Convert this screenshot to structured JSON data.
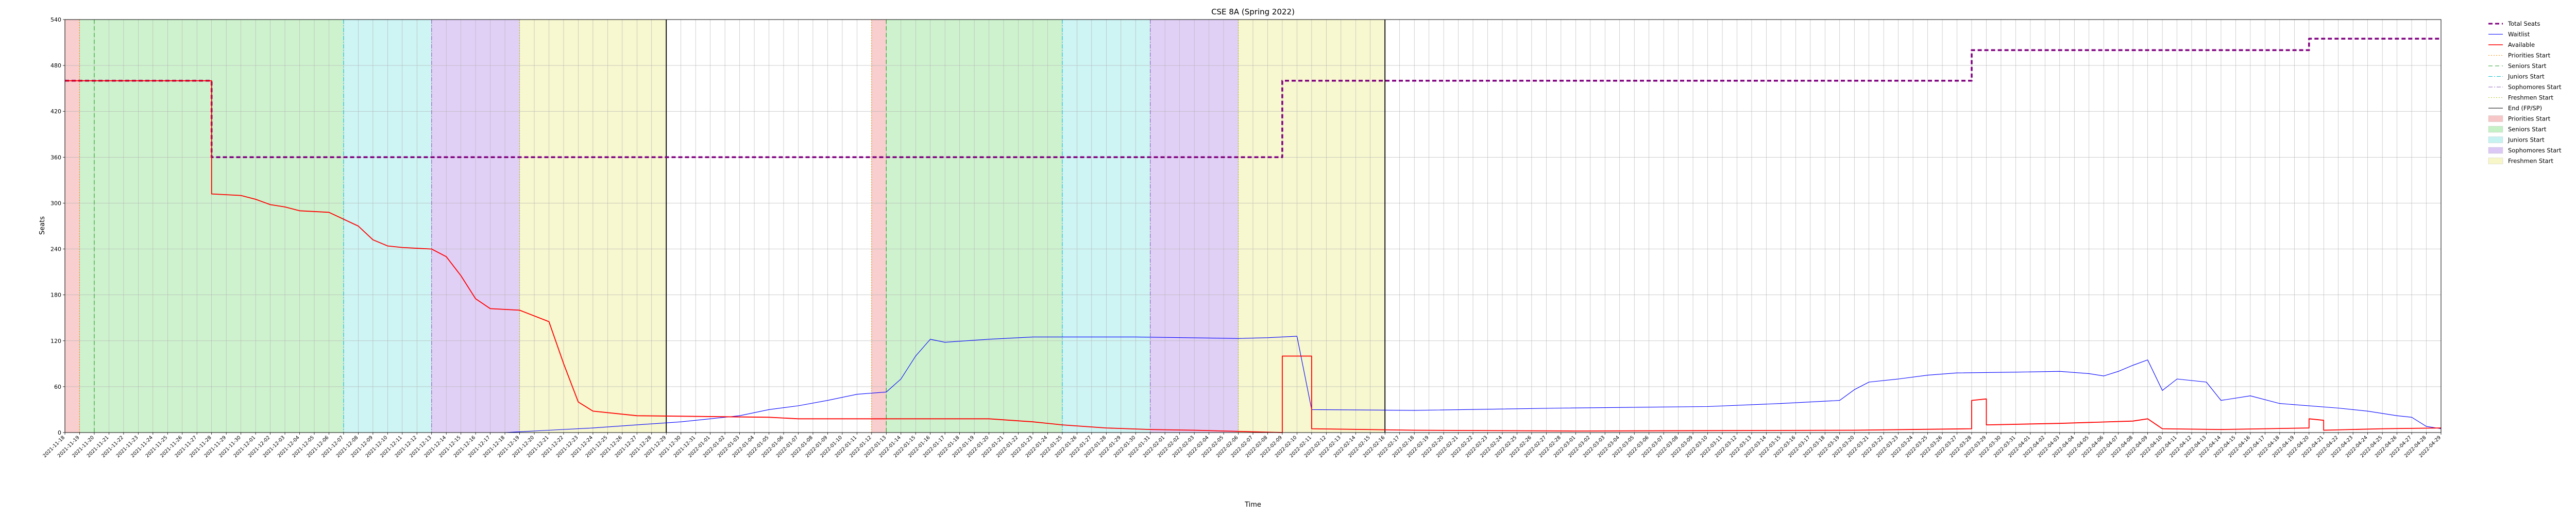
{
  "chart_data": {
    "type": "line",
    "title": "CSE 8A (Spring 2022)",
    "xlabel": "Time",
    "ylabel": "Seats",
    "x_range": [
      "2021-11-18",
      "2022-04-29"
    ],
    "ylim": [
      0,
      540
    ],
    "y_ticks": [
      0,
      60,
      120,
      180,
      240,
      300,
      360,
      420,
      480,
      540
    ],
    "grid": true,
    "legend_position": "outside-top-right",
    "x_tick_start": "2021-11-18",
    "x_tick_end": "2022-04-29",
    "x_tick_step_days": 1,
    "series": [
      {
        "name": "Total Seats",
        "color": "#800080",
        "style": "dashed",
        "points": [
          [
            "2021-11-18",
            460
          ],
          [
            "2021-11-28",
            460
          ],
          [
            "2021-11-28",
            360
          ],
          [
            "2022-02-09",
            360
          ],
          [
            "2022-02-09",
            460
          ],
          [
            "2022-03-28",
            460
          ],
          [
            "2022-03-28",
            500
          ],
          [
            "2022-04-20",
            500
          ],
          [
            "2022-04-20",
            515
          ],
          [
            "2022-04-29",
            515
          ]
        ]
      },
      {
        "name": "Waitlist",
        "color": "#0000ff",
        "style": "solid",
        "points": [
          [
            "2021-11-18",
            0
          ],
          [
            "2021-12-18",
            0
          ],
          [
            "2021-12-21",
            3
          ],
          [
            "2021-12-24",
            6
          ],
          [
            "2021-12-27",
            10
          ],
          [
            "2021-12-30",
            14
          ],
          [
            "2022-01-01",
            18
          ],
          [
            "2022-01-03",
            22
          ],
          [
            "2022-01-05",
            30
          ],
          [
            "2022-01-07",
            35
          ],
          [
            "2022-01-09",
            42
          ],
          [
            "2022-01-11",
            50
          ],
          [
            "2022-01-13",
            53
          ],
          [
            "2022-01-14",
            70
          ],
          [
            "2022-01-15",
            100
          ],
          [
            "2022-01-16",
            122
          ],
          [
            "2022-01-17",
            118
          ],
          [
            "2022-01-20",
            122
          ],
          [
            "2022-01-23",
            125
          ],
          [
            "2022-01-30",
            125
          ],
          [
            "2022-02-06",
            123
          ],
          [
            "2022-02-08",
            124
          ],
          [
            "2022-02-10",
            126
          ],
          [
            "2022-02-11",
            30
          ],
          [
            "2022-02-18",
            29
          ],
          [
            "2022-02-28",
            32
          ],
          [
            "2022-03-10",
            34
          ],
          [
            "2022-03-15",
            38
          ],
          [
            "2022-03-19",
            42
          ],
          [
            "2022-03-20",
            56
          ],
          [
            "2022-03-21",
            66
          ],
          [
            "2022-03-23",
            70
          ],
          [
            "2022-03-25",
            75
          ],
          [
            "2022-03-27",
            78
          ],
          [
            "2022-03-31",
            79
          ],
          [
            "2022-04-03",
            80
          ],
          [
            "2022-04-05",
            77
          ],
          [
            "2022-04-06",
            74
          ],
          [
            "2022-04-07",
            80
          ],
          [
            "2022-04-08",
            88
          ],
          [
            "2022-04-09",
            95
          ],
          [
            "2022-04-10",
            55
          ],
          [
            "2022-04-11",
            70
          ],
          [
            "2022-04-13",
            66
          ],
          [
            "2022-04-14",
            42
          ],
          [
            "2022-04-16",
            48
          ],
          [
            "2022-04-18",
            38
          ],
          [
            "2022-04-22",
            32
          ],
          [
            "2022-04-24",
            28
          ],
          [
            "2022-04-26",
            22
          ],
          [
            "2022-04-27",
            20
          ],
          [
            "2022-04-28",
            8
          ],
          [
            "2022-04-29",
            5
          ]
        ]
      },
      {
        "name": "Available",
        "color": "#ff0000",
        "style": "solid",
        "points": [
          [
            "2021-11-18",
            460
          ],
          [
            "2021-11-28",
            460
          ],
          [
            "2021-11-28",
            312
          ],
          [
            "2021-11-30",
            310
          ],
          [
            "2021-12-01",
            305
          ],
          [
            "2021-12-02",
            298
          ],
          [
            "2021-12-03",
            295
          ],
          [
            "2021-12-04",
            290
          ],
          [
            "2021-12-06",
            288
          ],
          [
            "2021-12-08",
            270
          ],
          [
            "2021-12-09",
            252
          ],
          [
            "2021-12-10",
            244
          ],
          [
            "2021-12-11",
            242
          ],
          [
            "2021-12-13",
            240
          ],
          [
            "2021-12-14",
            230
          ],
          [
            "2021-12-15",
            205
          ],
          [
            "2021-12-16",
            175
          ],
          [
            "2021-12-17",
            162
          ],
          [
            "2021-12-19",
            160
          ],
          [
            "2021-12-21",
            145
          ],
          [
            "2021-12-22",
            90
          ],
          [
            "2021-12-23",
            40
          ],
          [
            "2021-12-24",
            28
          ],
          [
            "2021-12-27",
            22
          ],
          [
            "2022-01-05",
            20
          ],
          [
            "2022-01-07",
            18
          ],
          [
            "2022-01-20",
            18
          ],
          [
            "2022-01-23",
            14
          ],
          [
            "2022-01-25",
            10
          ],
          [
            "2022-01-28",
            6
          ],
          [
            "2022-01-31",
            4
          ],
          [
            "2022-02-03",
            3
          ],
          [
            "2022-02-05",
            2
          ],
          [
            "2022-02-07",
            1
          ],
          [
            "2022-02-09",
            0
          ],
          [
            "2022-02-09",
            100
          ],
          [
            "2022-02-11",
            100
          ],
          [
            "2022-02-11",
            5
          ],
          [
            "2022-02-18",
            3
          ],
          [
            "2022-03-01",
            2
          ],
          [
            "2022-03-20",
            3
          ],
          [
            "2022-03-28",
            5
          ],
          [
            "2022-03-28",
            42
          ],
          [
            "2022-03-29",
            44
          ],
          [
            "2022-03-29",
            10
          ],
          [
            "2022-04-03",
            12
          ],
          [
            "2022-04-08",
            15
          ],
          [
            "2022-04-09",
            18
          ],
          [
            "2022-04-10",
            5
          ],
          [
            "2022-04-14",
            4
          ],
          [
            "2022-04-20",
            6
          ],
          [
            "2022-04-20",
            18
          ],
          [
            "2022-04-21",
            16
          ],
          [
            "2022-04-21",
            3
          ],
          [
            "2022-04-25",
            5
          ],
          [
            "2022-04-29",
            6
          ]
        ]
      }
    ],
    "vlines": [
      {
        "name": "Priorities Start",
        "date": "2021-11-19",
        "color": "#ff8c00",
        "style": "dotted"
      },
      {
        "name": "Seniors Start",
        "date": "2021-11-20",
        "color": "#2ca02c",
        "style": "dashed"
      },
      {
        "name": "Juniors Start",
        "date": "2021-12-07",
        "color": "#17becf",
        "style": "dashdot"
      },
      {
        "name": "Sophomores Start",
        "date": "2021-12-13",
        "color": "#9467bd",
        "style": "dashdot"
      },
      {
        "name": "Freshmen Start",
        "date": "2021-12-19",
        "color": "#bcbd22",
        "style": "dotted"
      },
      {
        "name": "End (FP/SP)",
        "date": "2021-12-29",
        "color": "#000000",
        "style": "solid"
      },
      {
        "name": "Priorities Start",
        "date": "2022-01-12",
        "color": "#ff8c00",
        "style": "dotted"
      },
      {
        "name": "Seniors Start",
        "date": "2022-01-13",
        "color": "#2ca02c",
        "style": "dashed"
      },
      {
        "name": "Juniors Start",
        "date": "2022-01-25",
        "color": "#17becf",
        "style": "dashdot"
      },
      {
        "name": "Sophomores Start",
        "date": "2022-01-31",
        "color": "#9467bd",
        "style": "dashdot"
      },
      {
        "name": "Freshmen Start",
        "date": "2022-02-06",
        "color": "#bcbd22",
        "style": "dotted"
      },
      {
        "name": "End (FP/SP)",
        "date": "2022-02-16",
        "color": "#000000",
        "style": "solid"
      }
    ],
    "spans": [
      {
        "name": "Priorities Start",
        "start": "2021-11-18",
        "end": "2021-11-19",
        "color": "#f7c6c6"
      },
      {
        "name": "Seniors Start",
        "start": "2021-11-19",
        "end": "2021-12-07",
        "color": "#c6f0c6"
      },
      {
        "name": "Juniors Start",
        "start": "2021-12-07",
        "end": "2021-12-13",
        "color": "#c6f2f2"
      },
      {
        "name": "Sophomores Start",
        "start": "2021-12-13",
        "end": "2021-12-19",
        "color": "#dcc8f4"
      },
      {
        "name": "Freshmen Start",
        "start": "2021-12-19",
        "end": "2021-12-29",
        "color": "#f6f6c8"
      },
      {
        "name": "Priorities Start",
        "start": "2022-01-12",
        "end": "2022-01-13",
        "color": "#f7c6c6"
      },
      {
        "name": "Seniors Start",
        "start": "2022-01-13",
        "end": "2022-01-25",
        "color": "#c6f0c6"
      },
      {
        "name": "Juniors Start",
        "start": "2022-01-25",
        "end": "2022-01-31",
        "color": "#c6f2f2"
      },
      {
        "name": "Sophomores Start",
        "start": "2022-01-31",
        "end": "2022-02-06",
        "color": "#dcc8f4"
      },
      {
        "name": "Freshmen Start",
        "start": "2022-02-06",
        "end": "2022-02-16",
        "color": "#f6f6c8"
      }
    ],
    "legend": [
      {
        "label": "Total Seats",
        "kind": "line",
        "color": "#800080",
        "style": "dashed",
        "width": 3
      },
      {
        "label": "Waitlist",
        "kind": "line",
        "color": "#0000ff",
        "style": "solid",
        "width": 1
      },
      {
        "label": "Available",
        "kind": "line",
        "color": "#ff0000",
        "style": "solid",
        "width": 1.5
      },
      {
        "label": "Priorities Start",
        "kind": "line",
        "color": "#ff8c00",
        "style": "dotted",
        "width": 1
      },
      {
        "label": "Seniors Start",
        "kind": "line",
        "color": "#2ca02c",
        "style": "dashed",
        "width": 1
      },
      {
        "label": "Juniors Start",
        "kind": "line",
        "color": "#17becf",
        "style": "dashdot",
        "width": 1
      },
      {
        "label": "Sophomores Start",
        "kind": "line",
        "color": "#9467bd",
        "style": "dashdot",
        "width": 1
      },
      {
        "label": "Freshmen Start",
        "kind": "line",
        "color": "#bcbd22",
        "style": "dotted",
        "width": 1
      },
      {
        "label": "End (FP/SP)",
        "kind": "line",
        "color": "#000000",
        "style": "solid",
        "width": 1
      },
      {
        "label": "Priorities Start",
        "kind": "patch",
        "color": "#f7c6c6"
      },
      {
        "label": "Seniors Start",
        "kind": "patch",
        "color": "#c6f0c6"
      },
      {
        "label": "Juniors Start",
        "kind": "patch",
        "color": "#c6f2f2"
      },
      {
        "label": "Sophomores Start",
        "kind": "patch",
        "color": "#dcc8f4"
      },
      {
        "label": "Freshmen Start",
        "kind": "patch",
        "color": "#f6f6c8"
      }
    ]
  }
}
